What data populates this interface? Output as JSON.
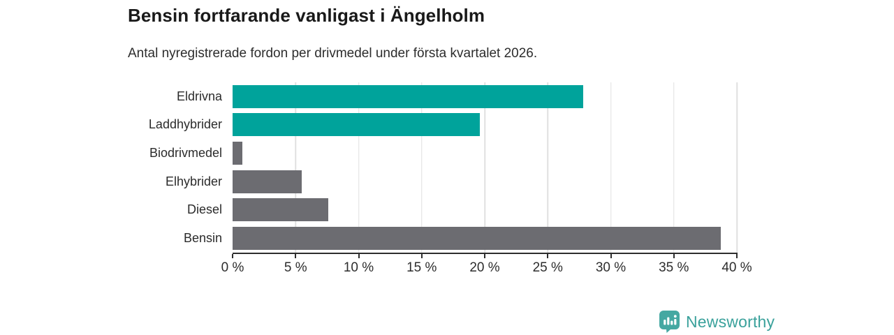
{
  "header": {
    "title": "Bensin fortfarande vanligast i Ängelholm",
    "subtitle": "Antal nyregistrerade fordon per drivmedel under första kvartalet 2026."
  },
  "chart_data": {
    "type": "bar",
    "orientation": "horizontal",
    "title": "Bensin fortfarande vanligast i Ängelholm",
    "subtitle": "Antal nyregistrerade fordon per drivmedel under första kvartalet 2026.",
    "categories": [
      "Eldrivna",
      "Laddhybrider",
      "Biodrivmedel",
      "Elhybrider",
      "Diesel",
      "Bensin"
    ],
    "values": [
      27.8,
      19.6,
      0.8,
      5.5,
      7.6,
      38.7
    ],
    "unit": "%",
    "bar_colors": [
      "#00a39b",
      "#00a39b",
      "#6c6c71",
      "#6c6c71",
      "#6c6c71",
      "#6c6c71"
    ],
    "xlabel": "",
    "ylabel": "",
    "xlim": [
      0,
      40
    ],
    "x_ticks": [
      0,
      5,
      10,
      15,
      20,
      25,
      30,
      35,
      40
    ],
    "x_tick_labels": [
      "0 %",
      "5 %",
      "10 %",
      "15 %",
      "20 %",
      "25 %",
      "30 %",
      "35 %",
      "40 %"
    ],
    "grid": "vertical-only",
    "legend": "none"
  },
  "footer": {
    "brand": "Newsworthy"
  },
  "colors": {
    "accent_teal": "#00a39b",
    "neutral_gray": "#6c6c71",
    "gridline": "#e0e0e0",
    "axis": "#2d2d2d",
    "title_text": "#191919",
    "body_text": "#2d2d2d",
    "brand_teal": "#3aa19b"
  }
}
